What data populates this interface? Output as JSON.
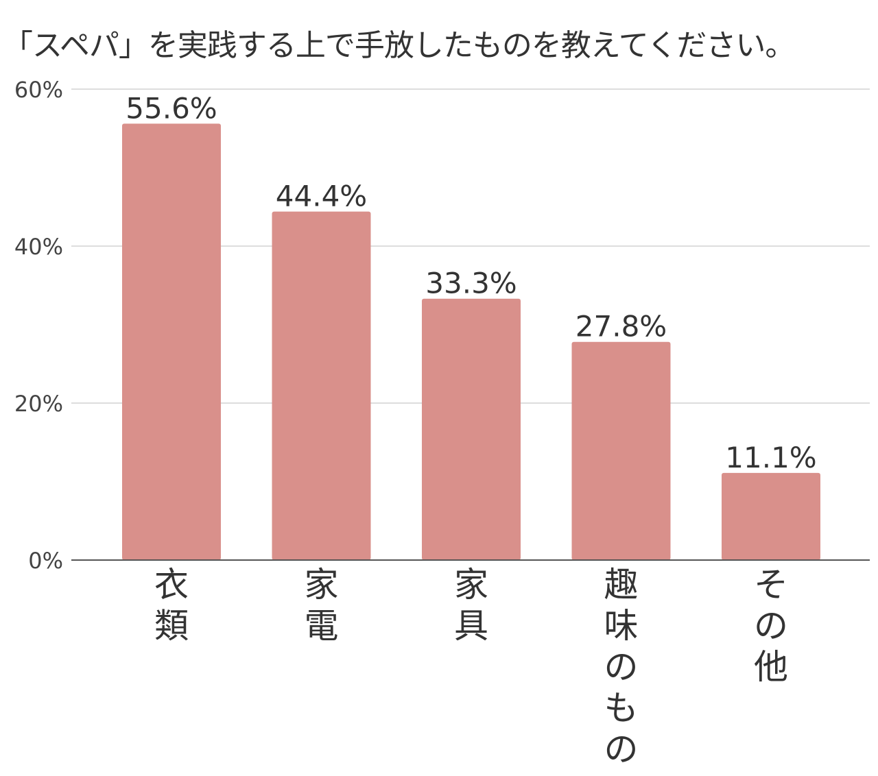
{
  "chart_data": {
    "type": "bar",
    "title": "「スペパ」を実践する上で手放したものを教えてください。",
    "categories": [
      "衣類",
      "家電",
      "家具",
      "趣味のもの",
      "その他"
    ],
    "values": [
      55.6,
      44.4,
      33.3,
      27.8,
      11.1
    ],
    "value_labels": [
      "55.6%",
      "44.4%",
      "33.3%",
      "27.8%",
      "11.1%"
    ],
    "ylim": [
      0,
      60
    ],
    "yticks": [
      0,
      20,
      40,
      60
    ],
    "ytick_labels": [
      "0%",
      "20%",
      "40%",
      "60%"
    ],
    "xlabel": "",
    "ylabel": "",
    "grid": true,
    "colors": {
      "bar": "#d9908b",
      "grid": "#dddddd",
      "axis": "#555555",
      "text": "#333333"
    }
  }
}
